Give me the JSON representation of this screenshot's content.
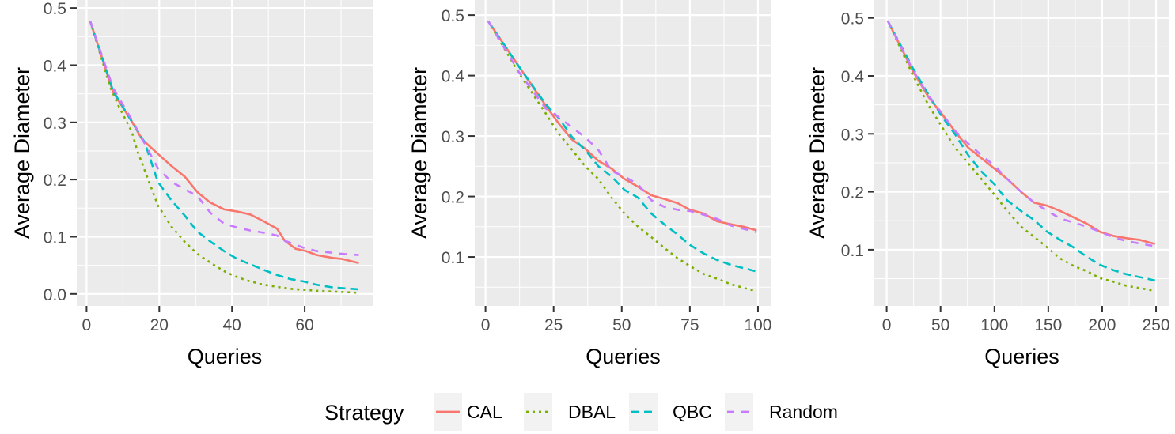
{
  "chart_data": [
    {
      "type": "line",
      "xlabel": "Queries",
      "ylabel": "Average Diameter",
      "xlim": [
        -2.7,
        78.7
      ],
      "ylim": [
        -0.021,
        0.514
      ],
      "xticks": [
        0,
        20,
        40,
        60
      ],
      "yticks": [
        0.0,
        0.1,
        0.2,
        0.3,
        0.4,
        0.5
      ],
      "ytick_labels": [
        "0.0",
        "0.1",
        "0.2",
        "0.3",
        "0.4",
        "0.5"
      ],
      "grid": true,
      "series": [
        {
          "name": "CAL",
          "x": [
            1,
            7.3,
            12.4,
            15.3,
            19.6,
            23.3,
            27,
            30.5,
            34,
            37.8,
            41.5,
            45,
            48.7,
            52.4,
            54.5,
            57.5,
            60.4,
            63.3,
            67.6,
            70.5,
            74.9
          ],
          "y": [
            0.477,
            0.353,
            0.302,
            0.27,
            0.245,
            0.224,
            0.205,
            0.178,
            0.16,
            0.148,
            0.144,
            0.139,
            0.127,
            0.114,
            0.093,
            0.079,
            0.075,
            0.068,
            0.063,
            0.061,
            0.054
          ]
        },
        {
          "name": "DBAL",
          "x": [
            1,
            6.5,
            8.7,
            12.4,
            14,
            19.6,
            23.3,
            27,
            30.5,
            34.2,
            37.8,
            41.5,
            45,
            48.7,
            56,
            63.3,
            74.9
          ],
          "y": [
            0.477,
            0.362,
            0.33,
            0.284,
            0.25,
            0.155,
            0.118,
            0.091,
            0.07,
            0.054,
            0.04,
            0.029,
            0.022,
            0.016,
            0.009,
            0.0055,
            0.002
          ]
        },
        {
          "name": "QBC",
          "x": [
            1,
            7.3,
            12.4,
            16,
            19.6,
            23.3,
            27,
            30.5,
            34.2,
            37.8,
            41.5,
            45,
            48.7,
            52.4,
            56,
            59.6,
            63.3,
            67.6,
            74.9
          ],
          "y": [
            0.477,
            0.355,
            0.302,
            0.265,
            0.196,
            0.164,
            0.137,
            0.109,
            0.091,
            0.075,
            0.061,
            0.052,
            0.042,
            0.033,
            0.026,
            0.022,
            0.016,
            0.0115,
            0.008
          ]
        },
        {
          "name": "Random",
          "x": [
            1,
            7.3,
            12.4,
            16,
            19.6,
            23.3,
            27,
            30.5,
            34.2,
            37.8,
            41.5,
            45,
            48.7,
            52.4,
            54.5,
            59.6,
            63.3,
            70.5,
            74.9
          ],
          "y": [
            0.477,
            0.36,
            0.305,
            0.263,
            0.22,
            0.196,
            0.183,
            0.171,
            0.141,
            0.123,
            0.116,
            0.111,
            0.107,
            0.102,
            0.093,
            0.081,
            0.075,
            0.07,
            0.068
          ]
        }
      ]
    },
    {
      "type": "line",
      "xlabel": "Queries",
      "ylabel": "Average Diameter",
      "xlim": [
        -3.95,
        104.95
      ],
      "ylim": [
        0.019,
        0.525
      ],
      "xticks": [
        0,
        25,
        50,
        75,
        100
      ],
      "yticks": [
        0.1,
        0.2,
        0.3,
        0.4,
        0.5
      ],
      "ytick_labels": [
        "0.1",
        "0.2",
        "0.3",
        "0.4",
        "0.5"
      ],
      "grid": true,
      "series": [
        {
          "name": "CAL",
          "x": [
            1,
            12.4,
            22,
            27,
            31.8,
            36.6,
            41.4,
            46.3,
            51,
            56,
            60.8,
            65.6,
            70.5,
            75,
            80,
            85,
            90,
            94.7,
            99.5
          ],
          "y": [
            0.49,
            0.414,
            0.351,
            0.32,
            0.294,
            0.279,
            0.259,
            0.246,
            0.229,
            0.216,
            0.202,
            0.196,
            0.189,
            0.178,
            0.172,
            0.159,
            0.154,
            0.15,
            0.144
          ]
        },
        {
          "name": "DBAL",
          "x": [
            1,
            12.4,
            22,
            27,
            31.8,
            36.6,
            41.4,
            46.3,
            51,
            56,
            60.8,
            65.6,
            70.5,
            75,
            80,
            85,
            90,
            99.5
          ],
          "y": [
            0.49,
            0.403,
            0.338,
            0.303,
            0.277,
            0.25,
            0.229,
            0.198,
            0.172,
            0.15,
            0.133,
            0.115,
            0.098,
            0.085,
            0.072,
            0.064,
            0.055,
            0.043
          ]
        },
        {
          "name": "QBC",
          "x": [
            1,
            12.4,
            22,
            27,
            31.8,
            36.6,
            41.4,
            46.3,
            51,
            56,
            60.8,
            65.6,
            70.5,
            75,
            80,
            85,
            90,
            99.5
          ],
          "y": [
            0.49,
            0.414,
            0.353,
            0.329,
            0.298,
            0.277,
            0.25,
            0.233,
            0.211,
            0.198,
            0.172,
            0.154,
            0.137,
            0.12,
            0.106,
            0.095,
            0.087,
            0.076
          ]
        },
        {
          "name": "Random",
          "x": [
            1,
            12.4,
            22,
            27,
            31.8,
            36.6,
            41.4,
            46.3,
            51,
            56,
            60.8,
            65.6,
            70.5,
            75,
            80,
            85,
            90,
            99.5
          ],
          "y": [
            0.49,
            0.405,
            0.346,
            0.331,
            0.314,
            0.298,
            0.277,
            0.242,
            0.233,
            0.22,
            0.194,
            0.183,
            0.178,
            0.176,
            0.17,
            0.163,
            0.152,
            0.141
          ]
        }
      ]
    },
    {
      "type": "line",
      "xlabel": "Queries",
      "ylabel": "Average Diameter",
      "xlim": [
        -11.45,
        262.45
      ],
      "ylim": [
        0.003,
        0.531
      ],
      "xticks": [
        0,
        50,
        100,
        150,
        200,
        250
      ],
      "yticks": [
        0.1,
        0.2,
        0.3,
        0.4,
        0.5
      ],
      "ytick_labels": [
        "0.1",
        "0.2",
        "0.3",
        "0.4",
        "0.5"
      ],
      "grid": true,
      "series": [
        {
          "name": "CAL",
          "x": [
            1,
            24.4,
            39,
            51,
            63.5,
            75.8,
            88,
            100,
            112,
            124.6,
            137,
            149,
            161,
            173.5,
            185.7,
            198,
            210,
            222,
            234.6,
            249
          ],
          "y": [
            0.495,
            0.408,
            0.363,
            0.335,
            0.304,
            0.276,
            0.258,
            0.24,
            0.222,
            0.2,
            0.181,
            0.176,
            0.167,
            0.156,
            0.145,
            0.131,
            0.124,
            0.12,
            0.117,
            0.11
          ]
        },
        {
          "name": "DBAL",
          "x": [
            1,
            24.4,
            39,
            51,
            63.5,
            75.8,
            88,
            100,
            112,
            124.6,
            137,
            149,
            161,
            173.5,
            185.7,
            198,
            210,
            222,
            249
          ],
          "y": [
            0.495,
            0.401,
            0.349,
            0.313,
            0.276,
            0.249,
            0.222,
            0.195,
            0.167,
            0.14,
            0.122,
            0.104,
            0.085,
            0.072,
            0.063,
            0.051,
            0.045,
            0.038,
            0.029
          ]
        },
        {
          "name": "QBC",
          "x": [
            1,
            24.4,
            39,
            51,
            63.5,
            75.8,
            88,
            100,
            112,
            124.6,
            137,
            149,
            161,
            173.5,
            185.7,
            198,
            210,
            222,
            249
          ],
          "y": [
            0.495,
            0.413,
            0.367,
            0.331,
            0.299,
            0.263,
            0.235,
            0.213,
            0.185,
            0.167,
            0.151,
            0.131,
            0.117,
            0.104,
            0.088,
            0.074,
            0.065,
            0.058,
            0.047
          ]
        },
        {
          "name": "Random",
          "x": [
            1,
            24.4,
            39,
            51,
            63.5,
            75.8,
            88,
            100,
            112,
            124.6,
            137,
            149,
            161,
            173.5,
            185.7,
            198,
            210,
            222,
            249
          ],
          "y": [
            0.495,
            0.41,
            0.365,
            0.336,
            0.305,
            0.283,
            0.263,
            0.245,
            0.222,
            0.2,
            0.181,
            0.167,
            0.154,
            0.147,
            0.14,
            0.131,
            0.122,
            0.115,
            0.106
          ]
        }
      ]
    }
  ],
  "legend": {
    "title": "Strategy",
    "placement": "bottom",
    "entries": [
      {
        "label": "CAL",
        "color": "#F8766D",
        "linetype": "solid"
      },
      {
        "label": "DBAL",
        "color": "#7CAE00",
        "linetype": "dotted"
      },
      {
        "label": "QBC",
        "color": "#00BFC4",
        "linetype": "dashed"
      },
      {
        "label": "Random",
        "color": "#C77CFF",
        "linetype": "longdash"
      }
    ]
  },
  "colors": {
    "panel_background": "#EBEBEB",
    "gridline": "#FFFFFF"
  }
}
